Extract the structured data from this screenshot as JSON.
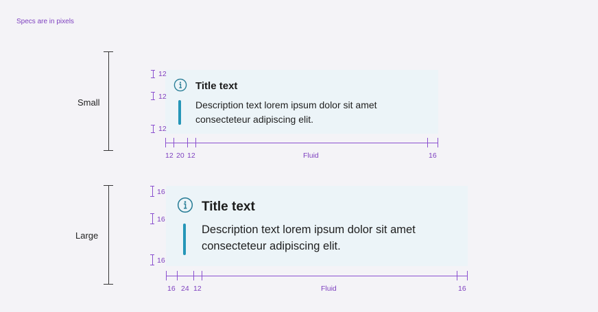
{
  "note": "Specs are in pixels",
  "small": {
    "label": "Small",
    "title": "Title text",
    "desc_line1": "Description text lorem ipsum dolor sit amet",
    "desc_line2": "consecteteur adipiscing elit.",
    "vspec": [
      "12",
      "12",
      "12"
    ],
    "hspec": [
      "12",
      "20",
      "12",
      "Fluid",
      "16"
    ]
  },
  "large": {
    "label": "Large",
    "title": "Title text",
    "desc_line1": "Description text lorem ipsum dolor sit amet",
    "desc_line2": "consecteteur adipiscing elit.",
    "vspec": [
      "16",
      "16",
      "16"
    ],
    "hspec": [
      "16",
      "24",
      "12",
      "Fluid",
      "16"
    ]
  },
  "colors": {
    "accent": "#2596b8",
    "spec": "#8a4fcf",
    "card_bg": "#ecf4f8"
  },
  "icons": {
    "info": "info-icon"
  }
}
